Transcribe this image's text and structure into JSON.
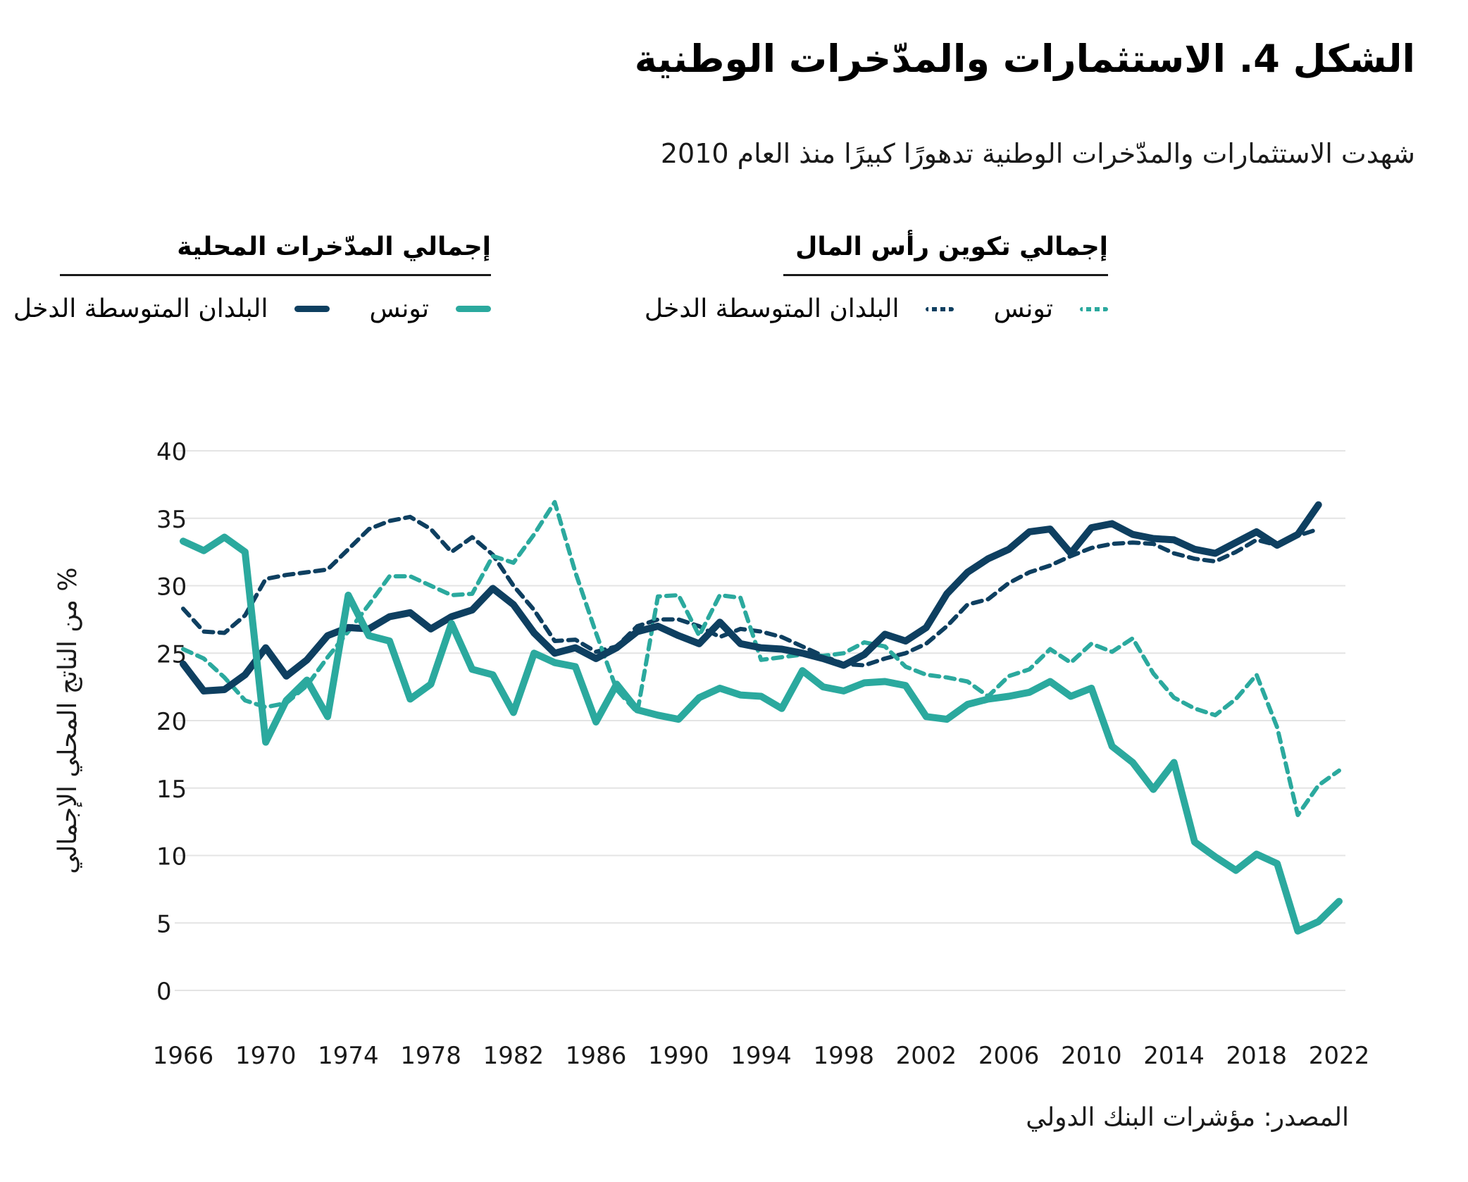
{
  "figure": {
    "title": "الشكل 4. الاستثمارات والمدّخرات الوطنية",
    "subtitle": "شهدت الاستثمارات والمدّخرات الوطنية تدهورًا كبيرًا منذ العام 2010",
    "source": "المصدر: مؤشرات البنك الدولي"
  },
  "colors": {
    "navy": "#0e3f60",
    "teal": "#2ba99e",
    "grid": "#e4e4e4",
    "text": "#1a1a1a"
  },
  "legend": {
    "capital_group": {
      "title": "إجمالي تكوين رأس المال",
      "items": [
        {
          "label": "تونس",
          "color": "#2ba99e",
          "style": "dashed"
        },
        {
          "label": "البلدان المتوسطة الدخل",
          "color": "#0e3f60",
          "style": "dashed"
        }
      ]
    },
    "savings_group": {
      "title": "إجمالي المدّخرات المحلية",
      "items": [
        {
          "label": "تونس",
          "color": "#2ba99e",
          "style": "solid"
        },
        {
          "label": "البلدان المتوسطة الدخل",
          "color": "#0e3f60",
          "style": "solid"
        }
      ]
    }
  },
  "chart_data": {
    "type": "line",
    "ylabel": "% من الناتج المحلي الإجمالي",
    "ylim": [
      0,
      40
    ],
    "yticks": [
      0,
      5,
      10,
      15,
      20,
      25,
      30,
      35,
      40
    ],
    "xticks": [
      1966,
      1970,
      1974,
      1978,
      1982,
      1986,
      1990,
      1994,
      1998,
      2002,
      2006,
      2010,
      2014,
      2018,
      2022
    ],
    "grid": "horizontal",
    "legend_position": "top",
    "x": [
      1966,
      1967,
      1968,
      1969,
      1970,
      1971,
      1972,
      1973,
      1974,
      1975,
      1976,
      1977,
      1978,
      1979,
      1980,
      1981,
      1982,
      1983,
      1984,
      1985,
      1986,
      1987,
      1988,
      1989,
      1990,
      1991,
      1992,
      1993,
      1994,
      1995,
      1996,
      1997,
      1998,
      1999,
      2000,
      2001,
      2002,
      2003,
      2004,
      2005,
      2006,
      2007,
      2008,
      2009,
      2010,
      2011,
      2012,
      2013,
      2014,
      2015,
      2016,
      2017,
      2018,
      2019,
      2020,
      2021,
      2022
    ],
    "series": [
      {
        "name": "البلدان المتوسطة الدخل — إجمالي تكوين رأس المال",
        "country": "البلدان المتوسطة الدخل",
        "measure": "إجمالي تكوين رأس المال",
        "style": "dashed",
        "color": "#0e3f60",
        "values": [
          28.3,
          26.6,
          26.5,
          27.8,
          30.5,
          30.8,
          31.0,
          31.2,
          32.7,
          34.2,
          34.8,
          35.1,
          34.2,
          32.5,
          33.6,
          32.3,
          30.0,
          28.2,
          25.9,
          26.0,
          25.1,
          25.5,
          27.0,
          27.5,
          27.5,
          27.0,
          26.2,
          26.8,
          26.6,
          26.2,
          25.5,
          24.8,
          24.2,
          24.1,
          24.6,
          25.0,
          25.7,
          27.0,
          28.6,
          29.0,
          30.2,
          31.0,
          31.5,
          32.2,
          32.8,
          33.1,
          33.2,
          33.1,
          32.4,
          32.0,
          31.8,
          32.5,
          33.4,
          33.0,
          33.7,
          34.2,
          null
        ]
      },
      {
        "name": "تونس — إجمالي تكوين رأس المال",
        "country": "تونس",
        "measure": "إجمالي تكوين رأس المال",
        "style": "dashed",
        "color": "#2ba99e",
        "values": [
          25.3,
          24.6,
          23.2,
          21.5,
          21.0,
          21.3,
          22.6,
          24.7,
          26.6,
          28.6,
          30.7,
          30.7,
          30.0,
          29.3,
          29.4,
          32.2,
          31.7,
          33.8,
          36.2,
          31.0,
          26.5,
          22.3,
          20.6,
          29.2,
          29.3,
          26.3,
          29.3,
          29.1,
          24.5,
          24.7,
          24.9,
          24.8,
          25.0,
          25.8,
          25.5,
          24.0,
          23.4,
          23.2,
          22.9,
          21.8,
          23.3,
          23.8,
          25.3,
          24.3,
          25.7,
          25.1,
          26.1,
          23.5,
          21.7,
          20.9,
          20.4,
          21.6,
          23.4,
          19.5,
          13.0,
          15.2,
          16.3
        ]
      },
      {
        "name": "البلدان المتوسطة الدخل — إجمالي المدّخرات المحلية",
        "country": "البلدان المتوسطة الدخل",
        "measure": "إجمالي المدّخرات المحلية",
        "style": "solid",
        "color": "#0e3f60",
        "values": [
          24.2,
          22.2,
          22.3,
          23.4,
          25.4,
          23.3,
          24.5,
          26.3,
          26.9,
          26.8,
          27.7,
          28.0,
          26.8,
          27.7,
          28.2,
          29.8,
          28.6,
          26.5,
          25.0,
          25.4,
          24.6,
          25.4,
          26.6,
          27.0,
          26.3,
          25.7,
          27.3,
          25.7,
          25.4,
          25.3,
          25.0,
          24.6,
          24.1,
          24.9,
          26.4,
          25.9,
          26.9,
          29.4,
          31.0,
          32.0,
          32.7,
          34.0,
          34.2,
          32.4,
          34.3,
          34.6,
          33.8,
          33.5,
          33.4,
          32.7,
          32.4,
          33.2,
          34.0,
          33.0,
          33.8,
          36.0,
          null
        ]
      },
      {
        "name": "تونس — إجمالي المدّخرات المحلية",
        "country": "تونس",
        "measure": "إجمالي المدّخرات المحلية",
        "style": "solid",
        "color": "#2ba99e",
        "values": [
          33.3,
          32.6,
          33.6,
          32.5,
          18.4,
          21.5,
          23.0,
          20.3,
          29.3,
          26.3,
          25.9,
          21.6,
          22.7,
          27.2,
          23.8,
          23.4,
          20.6,
          25.0,
          24.3,
          24.0,
          19.9,
          22.7,
          20.8,
          20.4,
          20.1,
          21.7,
          22.4,
          21.9,
          21.8,
          20.9,
          23.7,
          22.5,
          22.2,
          22.8,
          22.9,
          22.6,
          20.3,
          20.1,
          21.2,
          21.6,
          21.8,
          22.1,
          22.9,
          21.8,
          22.4,
          18.1,
          16.9,
          14.9,
          16.9,
          11.0,
          9.9,
          8.9,
          10.1,
          9.4,
          4.4,
          5.1,
          6.6
        ]
      }
    ]
  }
}
